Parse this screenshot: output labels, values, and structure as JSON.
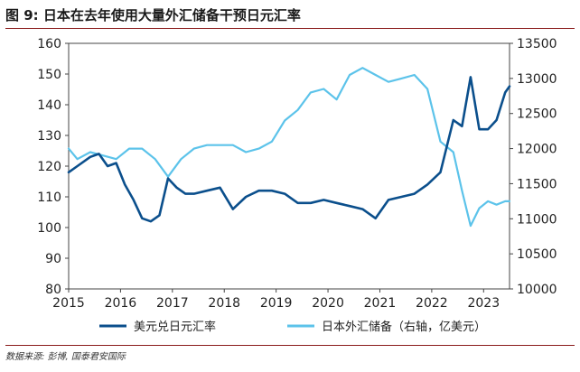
{
  "title": "图 9:  日本在去年使用大量外汇储备干预日元汇率",
  "source": "数据来源: 彭博, 国泰君安国际",
  "colors": {
    "usdjpy": "#0b4f8c",
    "reserves": "#5cc3ea",
    "rule": "#8a1c1c"
  },
  "chart_data": {
    "type": "line",
    "x_ticks": [
      "2015",
      "2016",
      "2017",
      "2018",
      "2019",
      "2020",
      "2021",
      "2022",
      "2023"
    ],
    "xlim": [
      "2015-01-01",
      "2023-07-01"
    ],
    "y_left": {
      "ticks": [
        "80",
        "90",
        "100",
        "110",
        "120",
        "130",
        "140",
        "150",
        "160"
      ],
      "lim": [
        80,
        160
      ]
    },
    "y_right": {
      "ticks": [
        "10000",
        "10500",
        "11000",
        "11500",
        "12000",
        "12500",
        "13000",
        "13500"
      ],
      "lim": [
        10000,
        13500
      ]
    },
    "series": [
      {
        "name": "美元兑日元汇率",
        "axis": "left",
        "x": [
          "2015-01",
          "2015-03",
          "2015-06",
          "2015-08",
          "2015-10",
          "2015-12",
          "2016-02",
          "2016-04",
          "2016-06",
          "2016-08",
          "2016-10",
          "2016-12",
          "2017-02",
          "2017-04",
          "2017-06",
          "2017-09",
          "2017-12",
          "2018-03",
          "2018-06",
          "2018-09",
          "2018-12",
          "2019-03",
          "2019-06",
          "2019-09",
          "2019-12",
          "2020-03",
          "2020-06",
          "2020-09",
          "2020-12",
          "2021-03",
          "2021-06",
          "2021-09",
          "2021-12",
          "2022-03",
          "2022-06",
          "2022-08",
          "2022-10",
          "2022-12",
          "2023-02",
          "2023-04",
          "2023-06",
          "2023-07"
        ],
        "values": [
          118,
          120,
          123,
          124,
          120,
          121,
          114,
          109,
          103,
          102,
          104,
          116,
          113,
          111,
          111,
          112,
          113,
          106,
          110,
          112,
          112,
          111,
          108,
          108,
          109,
          108,
          107,
          106,
          103,
          109,
          110,
          111,
          114,
          118,
          135,
          133,
          149,
          132,
          132,
          135,
          144,
          146
        ]
      },
      {
        "name": "日本外汇储备（右轴，亿美元）",
        "axis": "right",
        "x": [
          "2015-01",
          "2015-03",
          "2015-06",
          "2015-09",
          "2015-12",
          "2016-03",
          "2016-06",
          "2016-09",
          "2016-12",
          "2017-03",
          "2017-06",
          "2017-09",
          "2017-12",
          "2018-03",
          "2018-06",
          "2018-09",
          "2018-12",
          "2019-03",
          "2019-06",
          "2019-09",
          "2019-12",
          "2020-03",
          "2020-06",
          "2020-09",
          "2020-12",
          "2021-03",
          "2021-06",
          "2021-09",
          "2021-12",
          "2022-03",
          "2022-06",
          "2022-08",
          "2022-10",
          "2022-12",
          "2023-02",
          "2023-04",
          "2023-06",
          "2023-07"
        ],
        "values": [
          12000,
          11850,
          11950,
          11900,
          11850,
          12000,
          12000,
          11850,
          11600,
          11850,
          12000,
          12050,
          12050,
          12050,
          11950,
          12000,
          12100,
          12400,
          12550,
          12800,
          12850,
          12700,
          13050,
          13150,
          13050,
          12950,
          13000,
          13050,
          12850,
          12100,
          11950,
          11400,
          10900,
          11150,
          11250,
          11200,
          11250,
          11250
        ]
      }
    ],
    "legend": "bottom"
  }
}
